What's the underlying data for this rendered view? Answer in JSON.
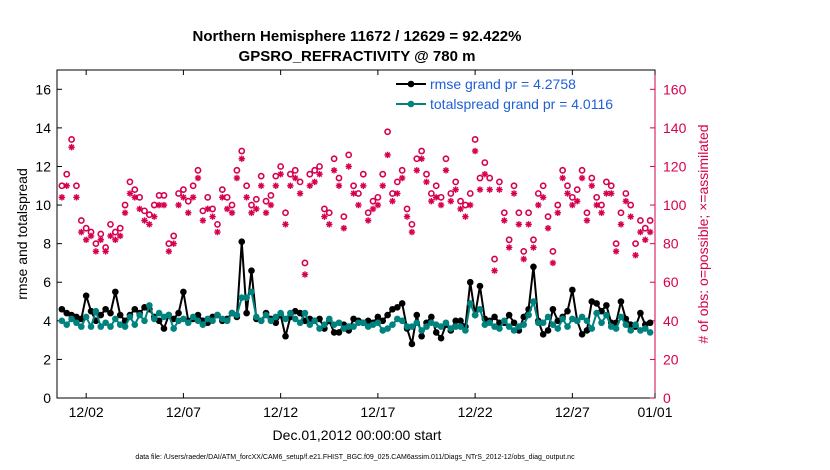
{
  "colors": {
    "rmse": "#000000",
    "spread": "#00827f",
    "obs": "#d6004f",
    "legend_text": "#1f5fd6"
  },
  "chart_data": {
    "type": "line",
    "title_line1": "Northern Hemisphere 11672 / 12629 = 92.422%",
    "title_line2": "GPSRO_REFRACTIVITY @ 780 m",
    "xlabel": "Dec.01,2012 00:00:00 start",
    "ylabel": "rmse and totalspread",
    "y2label": "# of obs: o=possible; ×=assimilated",
    "xlim": [
      0.5,
      31.25
    ],
    "ylim": [
      0,
      17
    ],
    "y2lim": [
      0,
      170
    ],
    "xticks": [
      {
        "x": 2,
        "label": "12/02"
      },
      {
        "x": 7,
        "label": "12/07"
      },
      {
        "x": 12,
        "label": "12/12"
      },
      {
        "x": 17,
        "label": "12/17"
      },
      {
        "x": 22,
        "label": "12/22"
      },
      {
        "x": 27,
        "label": "12/27"
      },
      {
        "x": 32,
        "label": "01/01"
      }
    ],
    "yticks": [
      0,
      2,
      4,
      6,
      8,
      10,
      12,
      14,
      16
    ],
    "y2ticks": [
      0,
      20,
      40,
      60,
      80,
      100,
      120,
      140,
      160
    ],
    "x": [
      0.75,
      1,
      1.25,
      1.5,
      1.75,
      2,
      2.25,
      2.5,
      2.75,
      3,
      3.25,
      3.5,
      3.75,
      4,
      4.25,
      4.5,
      4.75,
      5,
      5.25,
      5.5,
      5.75,
      6,
      6.25,
      6.5,
      6.75,
      7,
      7.25,
      7.5,
      7.75,
      8,
      8.25,
      8.5,
      8.75,
      9,
      9.25,
      9.5,
      9.75,
      10,
      10.25,
      10.5,
      10.75,
      11,
      11.25,
      11.5,
      11.75,
      12,
      12.25,
      12.5,
      12.75,
      13,
      13.25,
      13.5,
      13.75,
      14,
      14.25,
      14.5,
      14.75,
      15,
      15.25,
      15.5,
      15.75,
      16,
      16.25,
      16.5,
      16.75,
      17,
      17.25,
      17.5,
      17.75,
      18,
      18.25,
      18.5,
      18.75,
      19,
      19.25,
      19.5,
      19.75,
      20,
      20.25,
      20.5,
      20.75,
      21,
      21.25,
      21.5,
      21.75,
      22,
      22.25,
      22.5,
      22.75,
      23,
      23.25,
      23.5,
      23.75,
      24,
      24.25,
      24.5,
      24.75,
      25,
      25.25,
      25.5,
      25.75,
      26,
      26.25,
      26.5,
      26.75,
      27,
      27.25,
      27.5,
      27.75,
      28,
      28.25,
      28.5,
      28.75,
      29,
      29.25,
      29.5,
      29.75,
      30,
      30.25,
      30.5,
      30.75,
      31
    ],
    "series": [
      {
        "name": "rmse grand pr = 4.2758",
        "marker": "dot",
        "values": [
          4.6,
          4.4,
          4.3,
          4.2,
          4.1,
          5.3,
          4.5,
          4.0,
          4.3,
          4.6,
          4.4,
          5.5,
          4.3,
          4.0,
          4.3,
          4.6,
          4.4,
          4.7,
          4.6,
          4.2,
          4.0,
          3.6,
          4.3,
          4.1,
          4.4,
          5.5,
          4.0,
          4.1,
          4.3,
          4.0,
          3.9,
          4.2,
          4.3,
          4.0,
          4.1,
          4.4,
          4.2,
          8.1,
          4.4,
          6.6,
          4.1,
          4.0,
          4.4,
          4.1,
          3.9,
          4.3,
          3.2,
          4.2,
          4.5,
          4.4,
          4.0,
          4.1,
          4.0,
          4.1,
          3.6,
          4.0,
          3.4,
          3.4,
          3.8,
          3.5,
          4.1,
          4.0,
          3.9,
          4.0,
          3.9,
          4.2,
          4.0,
          4.3,
          4.6,
          4.7,
          4.9,
          3.6,
          2.8,
          4.3,
          3.2,
          3.9,
          4.2,
          3.4,
          3.1,
          3.8,
          3.5,
          4.0,
          4.0,
          3.7,
          6.0,
          4.3,
          5.8,
          4.1,
          4.0,
          4.2,
          3.9,
          3.9,
          4.3,
          3.9,
          3.5,
          4.2,
          4.6,
          6.8,
          4.0,
          3.3,
          3.5,
          4.6,
          4.0,
          4.2,
          4.5,
          5.6,
          4.0,
          3.3,
          3.5,
          5.0,
          4.9,
          4.5,
          4.8,
          3.9,
          3.9,
          5.0,
          4.1,
          3.8,
          3.7,
          4.4,
          3.8,
          3.9
        ]
      },
      {
        "name": "totalspread grand pr = 4.0116",
        "marker": "dot",
        "values": [
          4.0,
          3.8,
          4.1,
          3.9,
          3.7,
          4.2,
          3.7,
          4.5,
          3.7,
          3.9,
          3.7,
          4.1,
          3.8,
          3.7,
          4.2,
          3.8,
          4.3,
          4.0,
          4.8,
          4.1,
          4.4,
          4.2,
          4.3,
          3.6,
          4.0,
          4.1,
          3.9,
          4.2,
          4.0,
          3.8,
          4.1,
          4.0,
          4.3,
          4.1,
          4.0,
          4.4,
          4.3,
          5.2,
          5.2,
          5.5,
          4.2,
          4.0,
          4.3,
          4.0,
          4.2,
          4.4,
          4.1,
          4.4,
          4.1,
          3.9,
          4.4,
          3.8,
          4.0,
          3.6,
          3.8,
          4.1,
          3.8,
          3.9,
          3.6,
          3.7,
          3.7,
          3.9,
          3.9,
          3.7,
          3.8,
          3.9,
          3.5,
          3.6,
          3.8,
          4.1,
          4.0,
          3.7,
          3.7,
          3.9,
          3.5,
          3.7,
          3.9,
          3.8,
          3.7,
          3.9,
          3.6,
          3.7,
          3.7,
          3.5,
          4.9,
          4.3,
          4.6,
          3.8,
          3.9,
          3.7,
          3.6,
          4.0,
          3.7,
          3.5,
          3.7,
          3.8,
          4.3,
          5.0,
          3.9,
          3.9,
          4.2,
          3.8,
          3.6,
          4.1,
          3.7,
          4.1,
          4.0,
          4.2,
          4.0,
          3.6,
          4.4,
          3.9,
          4.3,
          3.7,
          3.6,
          4.2,
          3.8,
          3.5,
          3.8,
          3.5,
          3.6,
          3.4
        ]
      },
      {
        "name": "possible",
        "axis": "right",
        "marker": "circle",
        "values": [
          110,
          116,
          134,
          110,
          92,
          88,
          86,
          80,
          85,
          78,
          90,
          86,
          88,
          100,
          112,
          108,
          104,
          97,
          95,
          100,
          105,
          105,
          80,
          84,
          106,
          108,
          102,
          110,
          118,
          97,
          104,
          98,
          90,
          108,
          104,
          100,
          118,
          128,
          110,
          100,
          103,
          115,
          102,
          105,
          115,
          120,
          96,
          116,
          118,
          112,
          70,
          116,
          118,
          120,
          98,
          96,
          124,
          114,
          94,
          126,
          110,
          106,
          116,
          96,
          102,
          104,
          116,
          138,
          106,
          112,
          118,
          98,
          90,
          124,
          128,
          116,
          106,
          110,
          104,
          124,
          106,
          112,
          102,
          100,
          106,
          134,
          114,
          122,
          114,
          72,
          112,
          96,
          82,
          110,
          96,
          76,
          96,
          82,
          106,
          110,
          94,
          76,
          100,
          118,
          110,
          104,
          108,
          118,
          96,
          114,
          104,
          100,
          112,
          110,
          80,
          96,
          106,
          100,
          80,
          92,
          88,
          92
        ]
      },
      {
        "name": "assimilated",
        "axis": "right",
        "marker": "asterisk",
        "values": [
          104,
          110,
          130,
          104,
          86,
          82,
          84,
          76,
          82,
          76,
          84,
          82,
          84,
          96,
          106,
          104,
          98,
          92,
          90,
          94,
          100,
          100,
          76,
          80,
          100,
          104,
          96,
          104,
          114,
          92,
          98,
          94,
          86,
          104,
          98,
          96,
          114,
          124,
          104,
          96,
          98,
          110,
          96,
          100,
          110,
          116,
          90,
          110,
          114,
          106,
          64,
          110,
          112,
          116,
          94,
          90,
          118,
          110,
          88,
          120,
          106,
          100,
          110,
          92,
          98,
          100,
          110,
          126,
          102,
          106,
          114,
          94,
          86,
          118,
          124,
          112,
          102,
          104,
          100,
          118,
          102,
          108,
          98,
          94,
          100,
          128,
          108,
          116,
          108,
          66,
          108,
          92,
          78,
          106,
          90,
          72,
          90,
          78,
          100,
          104,
          88,
          70,
          96,
          114,
          106,
          100,
          102,
          114,
          92,
          110,
          100,
          96,
          106,
          106,
          76,
          90,
          102,
          94,
          74,
          86,
          82,
          86
        ]
      }
    ]
  },
  "footer_text": "data file: /Users/raeder/DAI/ATM_forcXX/CAM6_setup/f.e21.FHIST_BGC.f09_025.CAM6assim.011/Diags_NTrS_2012-12/obs_diag_output.nc"
}
